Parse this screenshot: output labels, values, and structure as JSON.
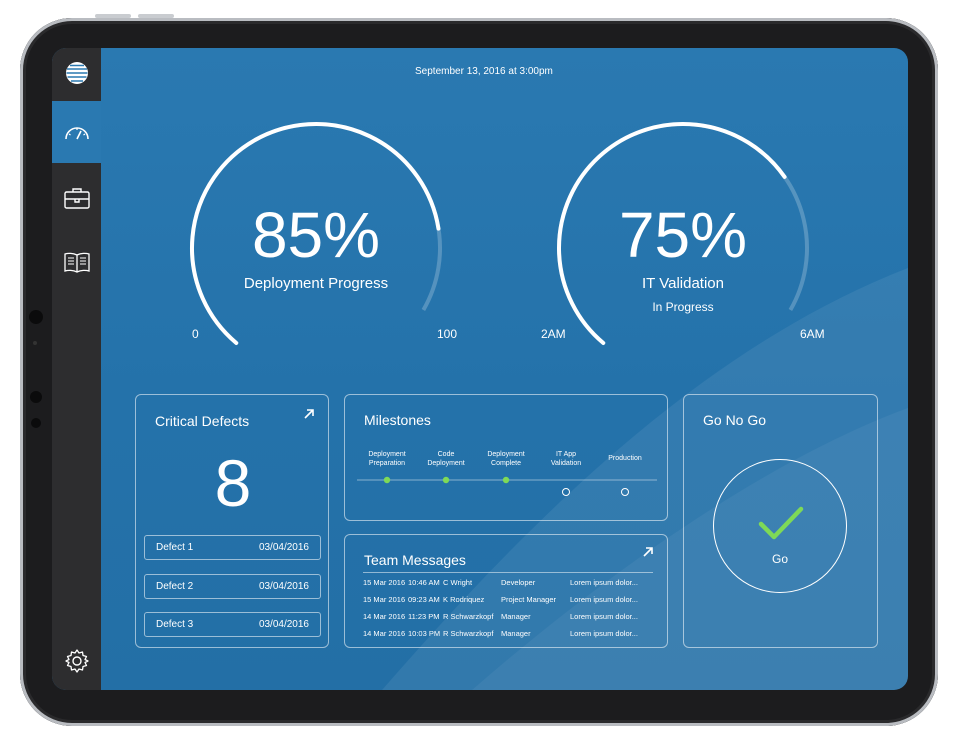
{
  "header": {
    "timestamp": "September 13, 2016 at 3:00pm"
  },
  "sidebar": {
    "items": [
      {
        "name": "logo",
        "icon": "globe-logo-icon"
      },
      {
        "name": "dashboard",
        "icon": "gauge-icon",
        "active": true
      },
      {
        "name": "projects",
        "icon": "briefcase-icon"
      },
      {
        "name": "docs",
        "icon": "book-icon"
      },
      {
        "name": "settings",
        "icon": "gear-icon"
      }
    ]
  },
  "gauges": [
    {
      "value_text": "85%",
      "label": "Deployment Progress",
      "sub": "",
      "min_label": "0",
      "max_label": "100",
      "fraction": 0.85
    },
    {
      "value_text": "75%",
      "label": "IT Validation",
      "sub": "In Progress",
      "min_label": "2AM",
      "max_label": "6AM",
      "fraction": 0.75
    }
  ],
  "critical_defects": {
    "title": "Critical Defects",
    "count": "8",
    "defects": [
      {
        "name": "Defect 1",
        "date": "03/04/2016"
      },
      {
        "name": "Defect 2",
        "date": "03/04/2016"
      },
      {
        "name": "Defect 3",
        "date": "03/04/2016"
      }
    ]
  },
  "milestones": {
    "title": "Milestones",
    "steps": [
      {
        "line1": "Deployment",
        "line2": "Preparation",
        "done": true
      },
      {
        "line1": "Code",
        "line2": "Deployment",
        "done": true
      },
      {
        "line1": "Deployment",
        "line2": "Complete",
        "done": true
      },
      {
        "line1": "IT App",
        "line2": "Validation",
        "done": false
      },
      {
        "line1": "Production",
        "line2": "",
        "done": false
      }
    ]
  },
  "team_messages": {
    "title": "Team Messages",
    "rows": [
      {
        "date": "15 Mar 2016",
        "time": "10:46 AM",
        "name": "C Wright",
        "role": "Developer",
        "msg": "Lorem ipsum dolor..."
      },
      {
        "date": "15 Mar 2016",
        "time": "09:23 AM",
        "name": "K Rodriquez",
        "role": "Project Manager",
        "msg": "Lorem ipsum dolor..."
      },
      {
        "date": "14 Mar 2016",
        "time": "11:23 PM",
        "name": "R Schwarzkopf",
        "role": "Manager",
        "msg": "Lorem ipsum dolor..."
      },
      {
        "date": "14 Mar 2016",
        "time": "10:03 PM",
        "name": "R Schwarzkopf",
        "role": "Manager",
        "msg": "Lorem ipsum dolor..."
      }
    ]
  },
  "go_no_go": {
    "title": "Go No Go",
    "status": "Go",
    "status_color": "#7ed957"
  },
  "colors": {
    "screen_bg": "#2a79b1",
    "sidebar_bg": "#2d2d2f",
    "milestone_done": "#7ed957"
  }
}
